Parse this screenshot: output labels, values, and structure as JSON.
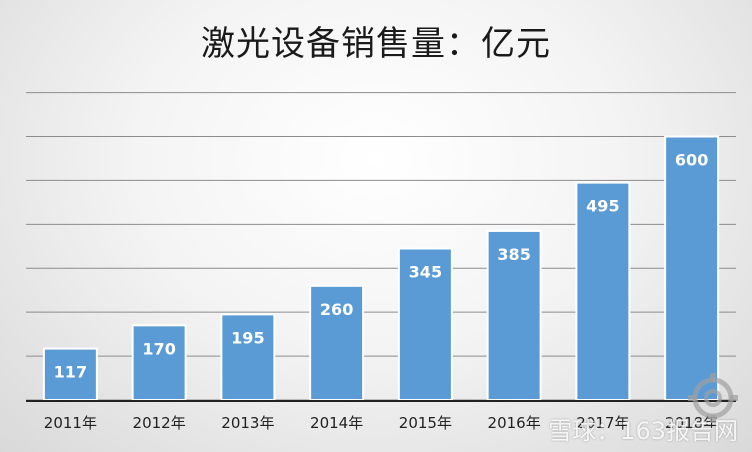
{
  "chart_data": {
    "type": "bar",
    "title": "激光设备销售量：亿元",
    "categories": [
      "2011年",
      "2012年",
      "2013年",
      "2014年",
      "2015年",
      "2016年",
      "2017年",
      "2018年"
    ],
    "values": [
      117,
      170,
      195,
      260,
      345,
      385,
      495,
      600
    ],
    "data_labels": [
      "117",
      "170",
      "195",
      "260",
      "345",
      "385",
      "495",
      "600"
    ],
    "ylim": [
      0,
      600
    ],
    "xlabel": "",
    "ylabel": "",
    "grid": true,
    "legend": "none",
    "bar_color": "#5b9bd5",
    "data_label_color": "#ffffff"
  },
  "watermark": {
    "text": "雪球：163报告网"
  }
}
